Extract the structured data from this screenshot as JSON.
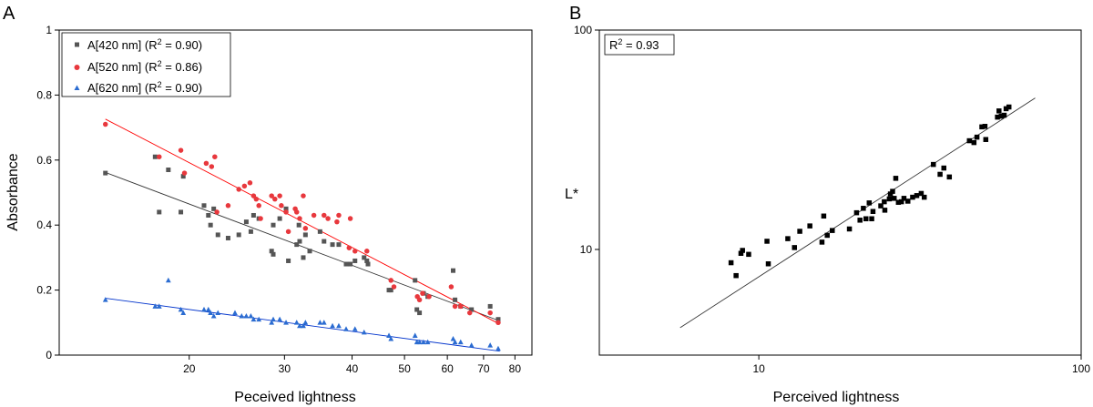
{
  "chart_data": [
    {
      "panel": "A",
      "type": "scatter",
      "xscale": "log",
      "xlabel": "Peceived lightness",
      "ylabel": "Absorbance",
      "xlim": [
        11.5,
        86
      ],
      "ylim": [
        0,
        1
      ],
      "xticks": [
        20,
        30,
        40,
        50,
        60,
        70,
        80
      ],
      "xtick_labels": [
        "20",
        "30",
        "40",
        "50",
        "60",
        "70",
        "80"
      ],
      "yticks": [
        0,
        0.2,
        0.4,
        0.6,
        0.8,
        1
      ],
      "ytick_labels": [
        "0",
        "0.2",
        "0.4",
        "0.6",
        "0.8",
        "1"
      ],
      "grid": false,
      "legend": "top-left",
      "legend_labels": [
        {
          "main": "A[420 nm] (R",
          "sup": "2",
          "tail": " = 0.90)"
        },
        {
          "main": "A[520 nm] (R",
          "sup": "2",
          "tail": " = 0.86)"
        },
        {
          "main": "A[620 nm] (R",
          "sup": "2",
          "tail": " = 0.90)"
        }
      ],
      "series": [
        {
          "name": "A[420 nm]",
          "color": "#555555",
          "marker": "square",
          "fit": {
            "from": [
              14,
              0.562
            ],
            "to": [
              75,
              0.105
            ],
            "color": "#333333"
          },
          "points": [
            [
              14,
              0.56
            ],
            [
              17.3,
              0.61
            ],
            [
              17.6,
              0.44
            ],
            [
              18.3,
              0.57
            ],
            [
              19.3,
              0.44
            ],
            [
              19.5,
              0.55
            ],
            [
              21.3,
              0.46
            ],
            [
              21.7,
              0.43
            ],
            [
              21.9,
              0.4
            ],
            [
              22.2,
              0.45
            ],
            [
              22.6,
              0.37
            ],
            [
              23.6,
              0.36
            ],
            [
              24.7,
              0.37
            ],
            [
              25.5,
              0.41
            ],
            [
              26.0,
              0.38
            ],
            [
              26.3,
              0.43
            ],
            [
              26.9,
              0.42
            ],
            [
              28.4,
              0.32
            ],
            [
              28.6,
              0.31
            ],
            [
              28.6,
              0.4
            ],
            [
              29.4,
              0.42
            ],
            [
              30.2,
              0.45
            ],
            [
              30.5,
              0.29
            ],
            [
              31.6,
              0.34
            ],
            [
              31.9,
              0.4
            ],
            [
              32.0,
              0.35
            ],
            [
              32.5,
              0.3
            ],
            [
              32.8,
              0.37
            ],
            [
              33.4,
              0.32
            ],
            [
              34.9,
              0.38
            ],
            [
              35.5,
              0.35
            ],
            [
              36.8,
              0.34
            ],
            [
              37.8,
              0.34
            ],
            [
              39.0,
              0.28
            ],
            [
              39.7,
              0.28
            ],
            [
              40.5,
              0.29
            ],
            [
              42.1,
              0.3
            ],
            [
              42.6,
              0.29
            ],
            [
              42.8,
              0.28
            ],
            [
              46.8,
              0.2
            ],
            [
              47.2,
              0.2
            ],
            [
              52.3,
              0.23
            ],
            [
              52.7,
              0.14
            ],
            [
              53.3,
              0.13
            ],
            [
              54.2,
              0.19
            ],
            [
              55.2,
              0.18
            ],
            [
              61.5,
              0.26
            ],
            [
              62.0,
              0.17
            ],
            [
              63.5,
              0.15
            ],
            [
              66.5,
              0.14
            ],
            [
              72.0,
              0.15
            ],
            [
              74.5,
              0.11
            ]
          ]
        },
        {
          "name": "A[520 nm]",
          "color": "#e8383d",
          "marker": "circle",
          "fit": {
            "from": [
              14,
              0.726
            ],
            "to": [
              75,
              0.095
            ],
            "color": "#ff0000"
          },
          "points": [
            [
              14,
              0.71
            ],
            [
              17.6,
              0.61
            ],
            [
              19.3,
              0.63
            ],
            [
              19.6,
              0.56
            ],
            [
              21.5,
              0.59
            ],
            [
              22.0,
              0.58
            ],
            [
              22.3,
              0.61
            ],
            [
              22.5,
              0.44
            ],
            [
              23.6,
              0.46
            ],
            [
              24.7,
              0.51
            ],
            [
              25.3,
              0.52
            ],
            [
              25.9,
              0.53
            ],
            [
              26.3,
              0.49
            ],
            [
              26.6,
              0.48
            ],
            [
              26.9,
              0.46
            ],
            [
              27.1,
              0.42
            ],
            [
              28.4,
              0.49
            ],
            [
              28.8,
              0.48
            ],
            [
              29.4,
              0.49
            ],
            [
              29.6,
              0.46
            ],
            [
              30.2,
              0.44
            ],
            [
              30.5,
              0.38
            ],
            [
              31.4,
              0.45
            ],
            [
              31.6,
              0.44
            ],
            [
              32.0,
              0.42
            ],
            [
              32.5,
              0.49
            ],
            [
              32.8,
              0.39
            ],
            [
              34.0,
              0.43
            ],
            [
              35.5,
              0.43
            ],
            [
              36.1,
              0.42
            ],
            [
              37.5,
              0.41
            ],
            [
              37.8,
              0.43
            ],
            [
              39.5,
              0.33
            ],
            [
              39.7,
              0.42
            ],
            [
              40.5,
              0.32
            ],
            [
              42.6,
              0.32
            ],
            [
              47.2,
              0.23
            ],
            [
              47.8,
              0.21
            ],
            [
              52.8,
              0.18
            ],
            [
              53.3,
              0.17
            ],
            [
              54.0,
              0.19
            ],
            [
              55.5,
              0.18
            ],
            [
              61.0,
              0.21
            ],
            [
              62.0,
              0.15
            ],
            [
              63.5,
              0.15
            ],
            [
              66.0,
              0.13
            ],
            [
              72.0,
              0.13
            ],
            [
              74.5,
              0.1
            ]
          ]
        },
        {
          "name": "A[620 nm]",
          "color": "#2b6cd1",
          "marker": "triangle",
          "fit": {
            "from": [
              14,
              0.175
            ],
            "to": [
              75,
              0.012
            ],
            "color": "#0033cc"
          },
          "points": [
            [
              14,
              0.17
            ],
            [
              17.3,
              0.15
            ],
            [
              17.6,
              0.15
            ],
            [
              18.3,
              0.23
            ],
            [
              19.3,
              0.14
            ],
            [
              19.5,
              0.13
            ],
            [
              21.3,
              0.14
            ],
            [
              21.7,
              0.14
            ],
            [
              21.9,
              0.13
            ],
            [
              22.2,
              0.12
            ],
            [
              22.6,
              0.13
            ],
            [
              24.3,
              0.13
            ],
            [
              25.0,
              0.12
            ],
            [
              25.5,
              0.12
            ],
            [
              26.0,
              0.12
            ],
            [
              26.3,
              0.11
            ],
            [
              26.9,
              0.11
            ],
            [
              28.4,
              0.1
            ],
            [
              28.6,
              0.11
            ],
            [
              29.4,
              0.11
            ],
            [
              30.2,
              0.1
            ],
            [
              31.6,
              0.1
            ],
            [
              32.0,
              0.09
            ],
            [
              32.5,
              0.09
            ],
            [
              32.8,
              0.1
            ],
            [
              34.9,
              0.1
            ],
            [
              35.5,
              0.1
            ],
            [
              36.8,
              0.09
            ],
            [
              37.8,
              0.09
            ],
            [
              39.0,
              0.08
            ],
            [
              40.5,
              0.08
            ],
            [
              42.1,
              0.07
            ],
            [
              46.8,
              0.06
            ],
            [
              47.2,
              0.05
            ],
            [
              52.3,
              0.06
            ],
            [
              52.7,
              0.04
            ],
            [
              53.3,
              0.04
            ],
            [
              54.2,
              0.04
            ],
            [
              55.2,
              0.04
            ],
            [
              61.5,
              0.05
            ],
            [
              62.0,
              0.04
            ],
            [
              63.5,
              0.04
            ],
            [
              66.5,
              0.03
            ],
            [
              72.0,
              0.03
            ],
            [
              74.5,
              0.02
            ]
          ]
        }
      ]
    },
    {
      "panel": "B",
      "type": "scatter",
      "xscale": "log",
      "yscale": "log",
      "xlabel": "Perceived lightness",
      "ylabel": "L*",
      "xlim": [
        3.2,
        100
      ],
      "ylim": [
        3.3,
        100
      ],
      "xticks": [
        10,
        100
      ],
      "xtick_labels": [
        "10",
        "100"
      ],
      "yticks": [
        10,
        100
      ],
      "ytick_labels": [
        "10",
        "100"
      ],
      "grid": false,
      "annotation": {
        "main": "R",
        "sup": "2",
        "tail": " = 0.93"
      },
      "series": [
        {
          "name": "",
          "color": "#000000",
          "marker": "square",
          "fit": {
            "from": [
              5.7,
              4.4
            ],
            "to": [
              72,
              49
            ],
            "color": "#333333"
          },
          "points": [
            [
              8.2,
              8.7
            ],
            [
              8.5,
              7.6
            ],
            [
              8.8,
              9.6
            ],
            [
              8.9,
              9.9
            ],
            [
              9.3,
              9.5
            ],
            [
              10.6,
              10.9
            ],
            [
              10.7,
              8.6
            ],
            [
              12.3,
              11.2
            ],
            [
              12.9,
              10.2
            ],
            [
              13.4,
              12.1
            ],
            [
              14.4,
              12.8
            ],
            [
              15.7,
              10.8
            ],
            [
              15.9,
              14.2
            ],
            [
              16.3,
              11.6
            ],
            [
              16.9,
              12.2
            ],
            [
              19.1,
              12.4
            ],
            [
              20.1,
              14.7
            ],
            [
              20.6,
              13.6
            ],
            [
              21.1,
              15.4
            ],
            [
              21.5,
              13.8
            ],
            [
              22.0,
              16.3
            ],
            [
              22.4,
              13.8
            ],
            [
              22.6,
              14.9
            ],
            [
              23.9,
              15.8
            ],
            [
              24.5,
              16.5
            ],
            [
              24.6,
              15.1
            ],
            [
              25.4,
              17.0
            ],
            [
              25.6,
              17.9
            ],
            [
              26.0,
              18.4
            ],
            [
              26.3,
              17.1
            ],
            [
              26.6,
              21.1
            ],
            [
              27.1,
              16.4
            ],
            [
              27.7,
              16.5
            ],
            [
              28.2,
              17.1
            ],
            [
              29.0,
              16.6
            ],
            [
              30.0,
              17.3
            ],
            [
              30.9,
              17.6
            ],
            [
              31.9,
              18.0
            ],
            [
              32.6,
              17.3
            ],
            [
              34.8,
              24.4
            ],
            [
              36.5,
              22.0
            ],
            [
              37.5,
              23.5
            ],
            [
              39.0,
              21.4
            ],
            [
              45.0,
              31.3
            ],
            [
              46.5,
              30.7
            ],
            [
              47.5,
              32.5
            ],
            [
              49.2,
              36.2
            ],
            [
              50.3,
              36.4
            ],
            [
              50.6,
              31.7
            ],
            [
              55.0,
              40.1
            ],
            [
              55.6,
              42.8
            ],
            [
              56.5,
              40.5
            ],
            [
              57.7,
              40.9
            ],
            [
              58.5,
              43.8
            ],
            [
              59.7,
              44.6
            ]
          ]
        }
      ]
    }
  ]
}
